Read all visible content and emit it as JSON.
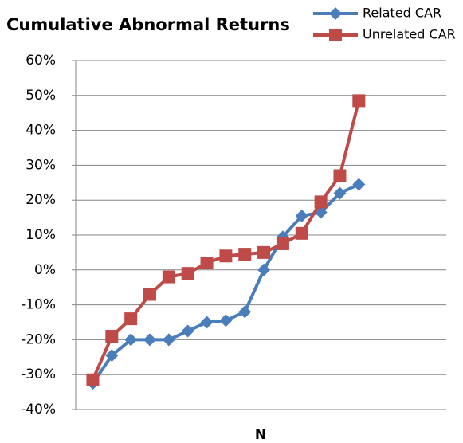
{
  "chart_data": {
    "type": "line",
    "title": "Cumulative Abnormal Returns",
    "x_label": "N",
    "x": [
      1,
      2,
      3,
      4,
      5,
      6,
      7,
      8,
      9,
      10,
      11,
      12,
      13,
      14,
      15
    ],
    "xlim": [
      0.1,
      19.6
    ],
    "ylim": [
      -40,
      60
    ],
    "yticks": [
      {
        "value": -40,
        "label": "-40%"
      },
      {
        "value": -30,
        "label": "-30%"
      },
      {
        "value": -20,
        "label": "-20%"
      },
      {
        "value": -10,
        "label": "-10%"
      },
      {
        "value": 0,
        "label": "0%"
      },
      {
        "value": 10,
        "label": "10%"
      },
      {
        "value": 20,
        "label": "20%"
      },
      {
        "value": 30,
        "label": "30%"
      },
      {
        "value": 40,
        "label": "40%"
      },
      {
        "value": 50,
        "label": "50%"
      },
      {
        "value": 60,
        "label": "60%"
      }
    ],
    "grid": true,
    "legend": "top-right",
    "series": [
      {
        "name": "Related CAR",
        "color": "#4a7ebb",
        "marker": "diamond",
        "values": [
          -32.5,
          -24.5,
          -20,
          -20,
          -20,
          -17.5,
          -15,
          -14.5,
          -12,
          0,
          9.5,
          15.5,
          16.5,
          22,
          24.5
        ]
      },
      {
        "name": "Unrelated CAR",
        "color": "#be4b48",
        "marker": "square",
        "values": [
          -31.5,
          -19,
          -14,
          -7,
          -2,
          -1,
          2,
          4,
          4.5,
          5,
          7.5,
          10.5,
          19.5,
          27,
          48.5
        ]
      }
    ]
  }
}
